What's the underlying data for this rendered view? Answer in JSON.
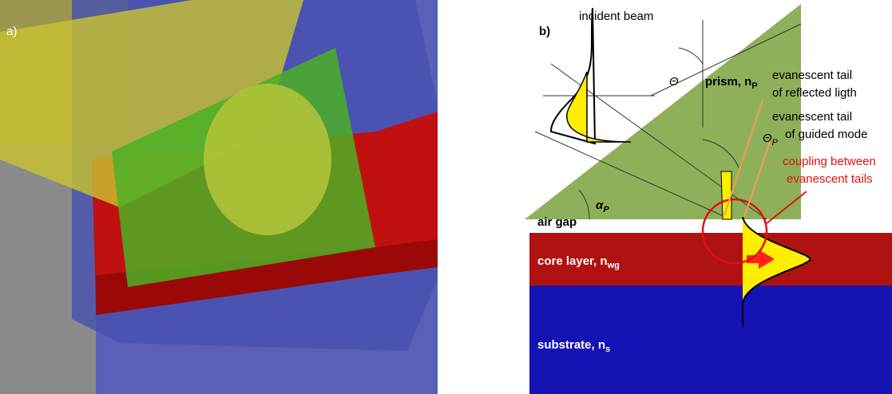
{
  "panel_a": {
    "label": "a)"
  },
  "panel_b": {
    "label": "b)",
    "incident_beam": "incident beam",
    "theta": "Θ",
    "prism": {
      "text": "prism, n",
      "sub": "P"
    },
    "theta_p": {
      "text": "Θ",
      "sub": "P"
    },
    "alpha_p": {
      "text": "α",
      "sub": "P"
    },
    "reflected_tail": [
      "evanescent tail",
      "of reflected ligth"
    ],
    "guided_tail": [
      "evanescent tail",
      "of guided mode"
    ],
    "coupling": [
      "coupling between",
      "evanescent tails"
    ],
    "air_gap": "air gap",
    "core_layer": {
      "text": "core layer, n",
      "sub": "wg"
    },
    "substrate": {
      "text": "substrate, n",
      "sub": "s"
    }
  }
}
